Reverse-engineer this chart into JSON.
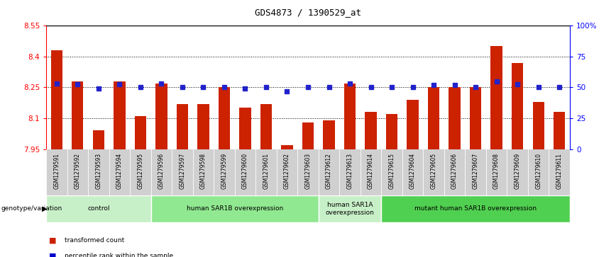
{
  "title": "GDS4873 / 1390529_at",
  "samples": [
    "GSM1279591",
    "GSM1279592",
    "GSM1279593",
    "GSM1279594",
    "GSM1279595",
    "GSM1279596",
    "GSM1279597",
    "GSM1279598",
    "GSM1279599",
    "GSM1279600",
    "GSM1279601",
    "GSM1279602",
    "GSM1279603",
    "GSM1279612",
    "GSM1279613",
    "GSM1279614",
    "GSM1279615",
    "GSM1279604",
    "GSM1279605",
    "GSM1279606",
    "GSM1279607",
    "GSM1279608",
    "GSM1279609",
    "GSM1279610",
    "GSM1279611"
  ],
  "red_values": [
    8.43,
    8.28,
    8.04,
    8.28,
    8.11,
    8.27,
    8.17,
    8.17,
    8.25,
    8.15,
    8.17,
    7.97,
    8.08,
    8.09,
    8.27,
    8.13,
    8.12,
    8.19,
    8.25,
    8.25,
    8.25,
    8.45,
    8.37,
    8.18,
    8.13
  ],
  "blue_values": [
    8.27,
    8.265,
    8.243,
    8.265,
    8.253,
    8.268,
    8.253,
    8.253,
    8.253,
    8.243,
    8.253,
    8.232,
    8.253,
    8.253,
    8.268,
    8.253,
    8.253,
    8.253,
    8.263,
    8.263,
    8.253,
    8.278,
    8.265,
    8.253,
    8.253
  ],
  "y_min": 7.95,
  "y_max": 8.55,
  "y_ticks": [
    7.95,
    8.1,
    8.25,
    8.4,
    8.55
  ],
  "y_tick_labels": [
    "7.95",
    "8.1",
    "8.25",
    "8.4",
    "8.55"
  ],
  "right_y_ticks": [
    0,
    25,
    50,
    75,
    100
  ],
  "right_y_tick_labels": [
    "0",
    "25",
    "50",
    "75",
    "100%"
  ],
  "groups": [
    {
      "label": "control",
      "start": 0,
      "end": 5,
      "color": "#c8f0c8"
    },
    {
      "label": "human SAR1B overexpression",
      "start": 5,
      "end": 13,
      "color": "#90e890"
    },
    {
      "label": "human SAR1A\noverexpression",
      "start": 13,
      "end": 16,
      "color": "#c8f0c8"
    },
    {
      "label": "mutant human SAR1B overexpression",
      "start": 16,
      "end": 25,
      "color": "#50d050"
    }
  ],
  "genotype_label": "genotype/variation",
  "legend_items": [
    {
      "label": "transformed count",
      "color": "#cc2200"
    },
    {
      "label": "percentile rank within the sample",
      "color": "#0000cc"
    }
  ],
  "bar_color": "#cc2200",
  "dot_color": "#2222cc",
  "bar_width": 0.55
}
